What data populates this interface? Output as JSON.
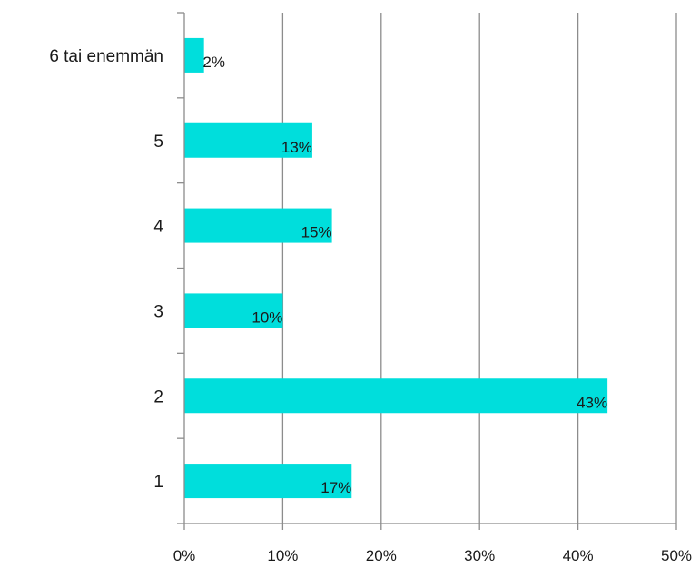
{
  "chart_data": {
    "type": "bar",
    "orientation": "horizontal",
    "categories": [
      "6 tai enemmän",
      "5",
      "4",
      "3",
      "2",
      "1"
    ],
    "values": [
      2,
      13,
      15,
      10,
      43,
      17
    ],
    "data_labels": [
      "2%",
      "13%",
      "15%",
      "10%",
      "43%",
      "17%"
    ],
    "x_ticks": [
      "0%",
      "10%",
      "20%",
      "30%",
      "40%",
      "50%"
    ],
    "xlim": [
      0,
      50
    ],
    "grid": "vertical",
    "bar_color": "#00dedc",
    "axis_color": "#8c8c8c",
    "title": "",
    "xlabel": "",
    "ylabel": ""
  }
}
